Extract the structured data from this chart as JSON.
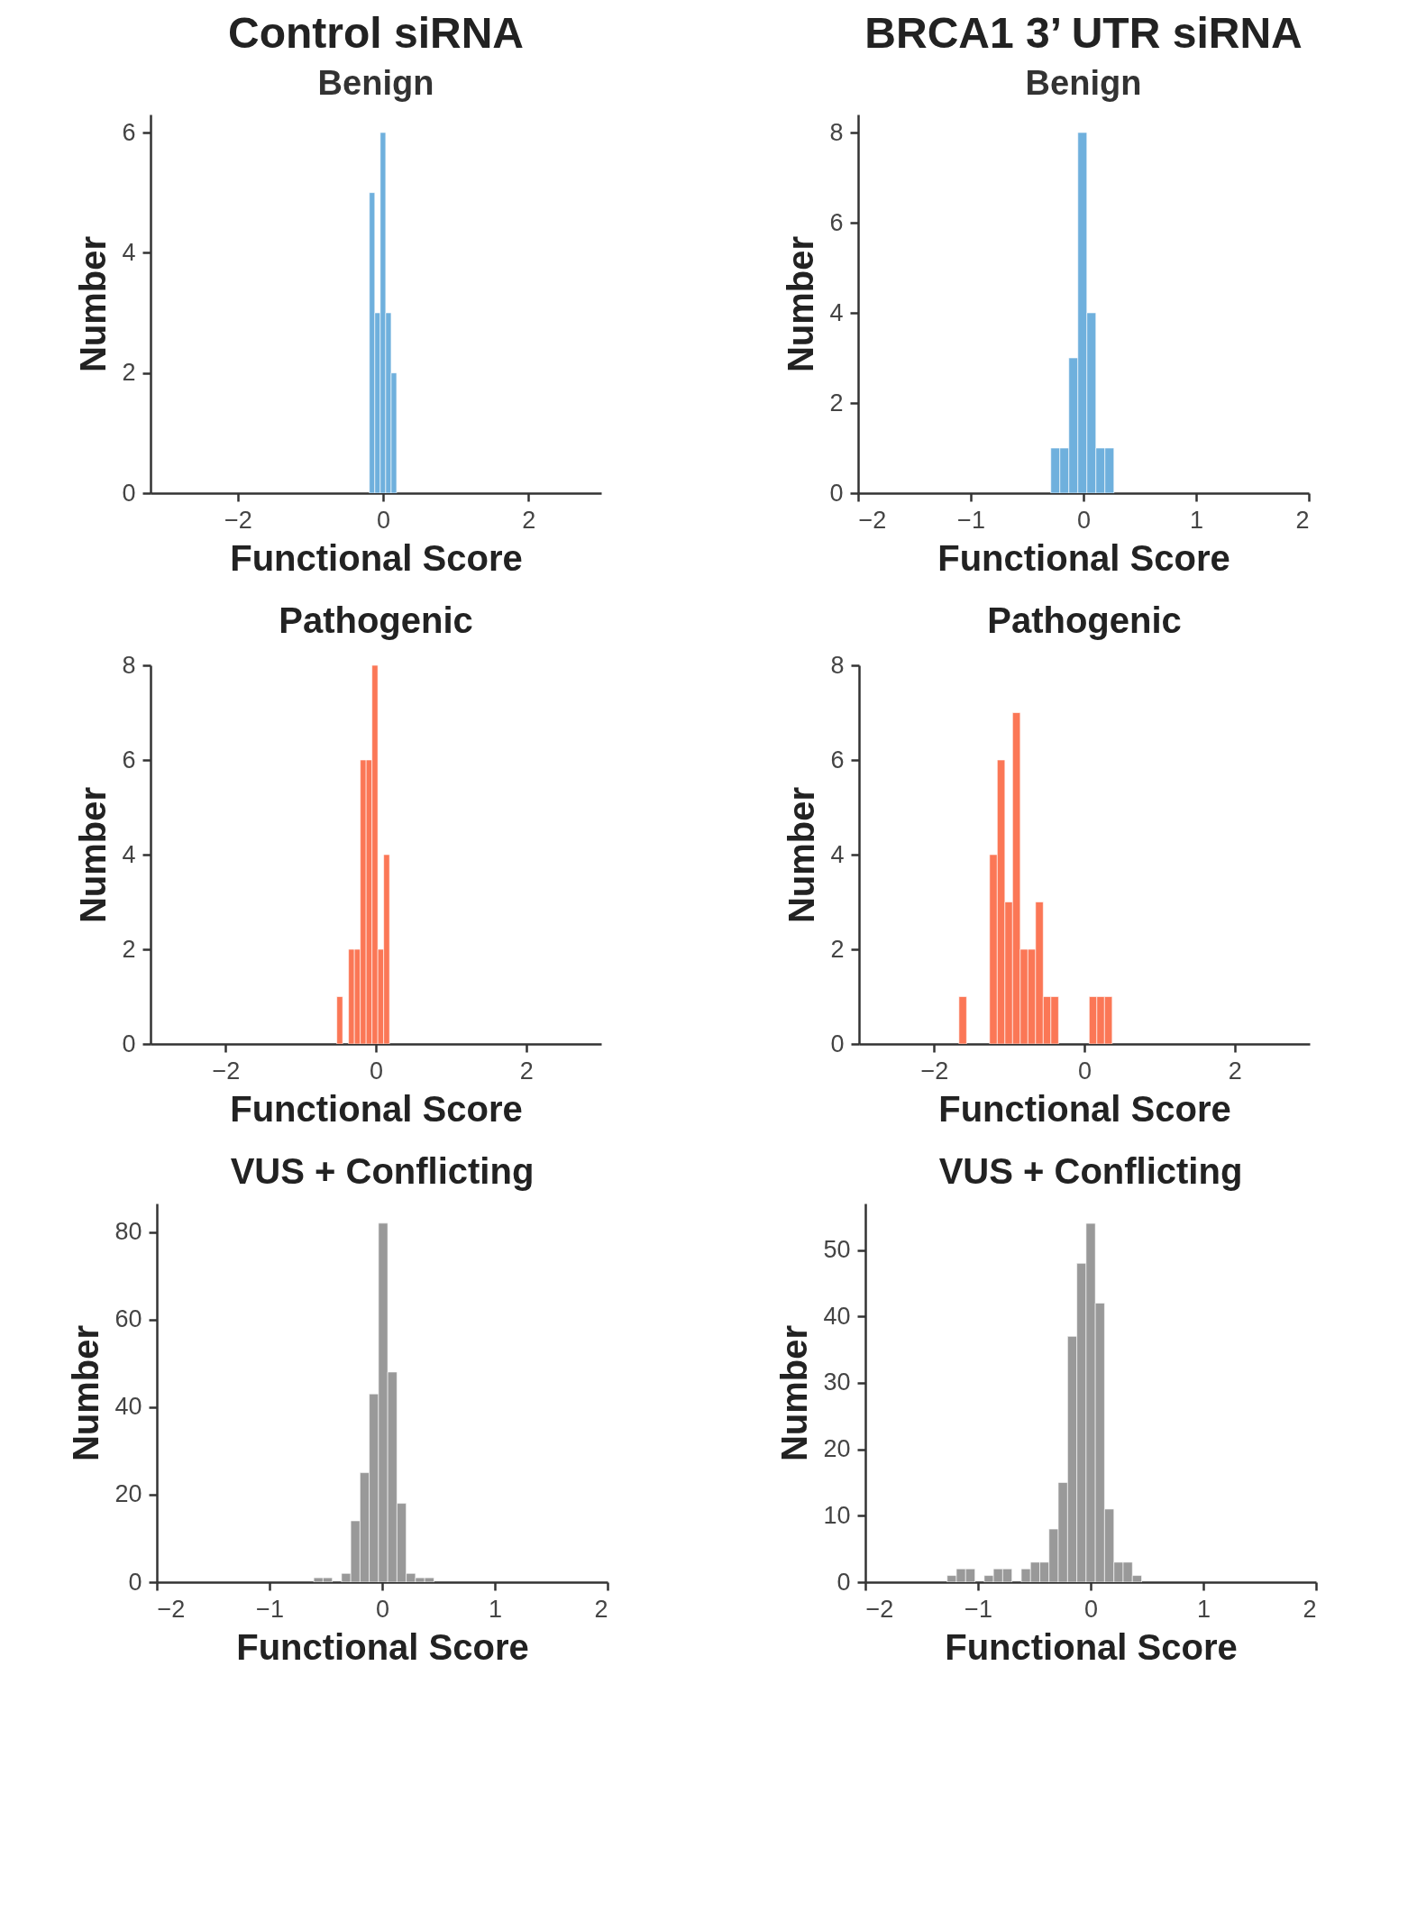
{
  "chart_data": [
    {
      "type": "histogram",
      "title": "Control siRNA",
      "subtitle": "Benign",
      "xlabel": "Functional Score",
      "ylabel": "Number",
      "color": "#6fb0dd",
      "grid": false,
      "xlim": [
        -3.2,
        3.0
      ],
      "xticks": [
        -2,
        0,
        2
      ],
      "ylim": [
        0,
        6.3
      ],
      "yticks": [
        0,
        2,
        4,
        6
      ],
      "bins": [
        -0.19,
        -0.115,
        -0.04,
        0.035,
        0.11,
        0.185
      ],
      "values": [
        5,
        3,
        6,
        3,
        2
      ]
    },
    {
      "type": "histogram",
      "title": "BRCA1 3’ UTR siRNA",
      "subtitle": "Benign",
      "xlabel": "Functional Score",
      "ylabel": "Number",
      "color": "#6fb0dd",
      "grid": false,
      "xlim": [
        -2,
        2
      ],
      "xticks": [
        -2,
        -1,
        0,
        1,
        2
      ],
      "ylim": [
        0,
        8.4
      ],
      "yticks": [
        0,
        2,
        4,
        6,
        8
      ],
      "bins": [
        -0.29,
        -0.21,
        -0.13,
        -0.05,
        0.03,
        0.11,
        0.19,
        0.27
      ],
      "values": [
        1,
        1,
        3,
        8,
        4,
        1,
        1
      ]
    },
    {
      "type": "histogram",
      "title": "Pathogenic",
      "xlabel": "Functional Score",
      "ylabel": "Number",
      "color": "#fb7756",
      "grid": false,
      "xlim": [
        -3,
        3
      ],
      "xticks": [
        -2,
        0,
        2
      ],
      "ylim": [
        0,
        8
      ],
      "yticks": [
        0,
        2,
        4,
        6,
        8
      ],
      "bins": [
        -0.52,
        -0.442,
        -0.364,
        -0.286,
        -0.208,
        -0.13,
        -0.052,
        0.026,
        0.104,
        0.182
      ],
      "values": [
        1,
        0,
        2,
        2,
        6,
        6,
        8,
        2,
        4
      ]
    },
    {
      "type": "histogram",
      "title": "Pathogenic",
      "xlabel": "Functional Score",
      "ylabel": "Number",
      "color": "#fb7756",
      "grid": false,
      "xlim": [
        -3,
        3
      ],
      "xticks": [
        -2,
        0,
        2
      ],
      "ylim": [
        0,
        8
      ],
      "yticks": [
        0,
        2,
        4,
        6,
        8
      ],
      "bins": [
        -1.67,
        -1.568,
        -1.466,
        -1.364,
        -1.262,
        -1.16,
        -1.058,
        -0.956,
        -0.854,
        -0.752,
        -0.65,
        -0.548,
        -0.446,
        -0.344,
        -0.242,
        -0.14,
        -0.038,
        0.064,
        0.166,
        0.268,
        0.37
      ],
      "values": [
        1,
        0,
        0,
        0,
        4,
        6,
        3,
        7,
        2,
        2,
        3,
        1,
        1,
        0,
        0,
        0,
        0,
        1,
        1,
        1
      ]
    },
    {
      "type": "histogram",
      "title": "VUS + Conflicting",
      "xlabel": "Functional Score",
      "ylabel": "Number",
      "color": "#999999",
      "grid": false,
      "xlim": [
        -2,
        2
      ],
      "xticks": [
        -2,
        -1,
        0,
        1,
        2
      ],
      "ylim": [
        0,
        86.5
      ],
      "yticks": [
        0,
        20,
        40,
        60,
        80
      ],
      "bins": [
        -0.607,
        -0.525,
        -0.443,
        -0.361,
        -0.279,
        -0.197,
        -0.115,
        -0.033,
        0.049,
        0.131,
        0.213,
        0.295,
        0.377,
        0.459
      ],
      "values": [
        1,
        1,
        0,
        2,
        14,
        25,
        43,
        82,
        48,
        18,
        2,
        1,
        1
      ]
    },
    {
      "type": "histogram",
      "title": "VUS + Conflicting",
      "xlabel": "Functional Score",
      "ylabel": "Number",
      "color": "#999999",
      "grid": false,
      "xlim": [
        -2,
        2
      ],
      "xticks": [
        -2,
        -1,
        0,
        1,
        2
      ],
      "ylim": [
        0,
        57
      ],
      "yticks": [
        0,
        10,
        20,
        30,
        40,
        50
      ],
      "bins": [
        -1.274,
        -1.192,
        -1.11,
        -1.027,
        -0.945,
        -0.863,
        -0.781,
        -0.699,
        -0.616,
        -0.534,
        -0.452,
        -0.37,
        -0.288,
        -0.205,
        -0.123,
        -0.041,
        0.041,
        0.123,
        0.206,
        0.288,
        0.37,
        0.452
      ],
      "values": [
        1,
        2,
        2,
        0,
        1,
        2,
        2,
        0,
        2,
        3,
        3,
        8,
        15,
        37,
        48,
        54,
        42,
        11,
        3,
        3,
        1
      ]
    }
  ]
}
